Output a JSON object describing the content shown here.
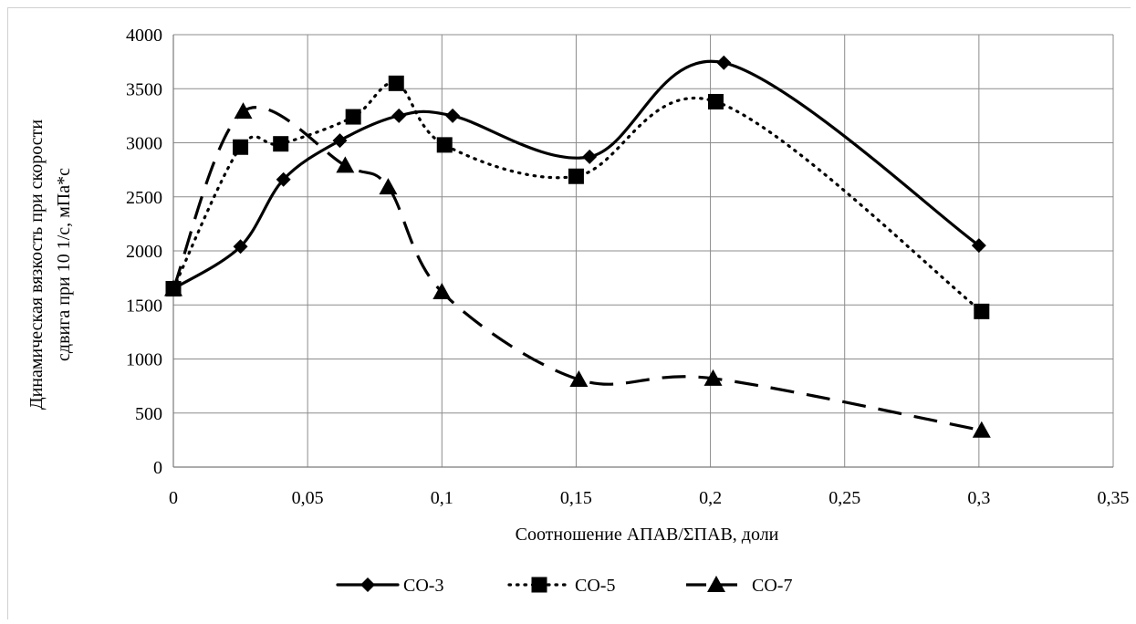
{
  "chart_data": {
    "type": "line",
    "title": "",
    "xlabel": "Соотношение АПАВ/ΣПАВ, доли",
    "ylabel_lines": [
      "Динамическая вязкость при скорости",
      "сдвига при 10 1/с, мПа*с"
    ],
    "xlim": [
      0,
      0.35
    ],
    "ylim": [
      0,
      4000
    ],
    "x_ticks": [
      "0",
      "0,05",
      "0,1",
      "0,15",
      "0,2",
      "0,25",
      "0,3",
      "0,35"
    ],
    "y_ticks": [
      "0",
      "500",
      "1000",
      "1500",
      "2000",
      "2500",
      "3000",
      "3500",
      "4000"
    ],
    "grid": true,
    "legend_position": "bottom",
    "series": [
      {
        "name": "СО-3",
        "marker": "diamond",
        "line_style": "solid",
        "color": "#000000",
        "x": [
          0,
          0.025,
          0.041,
          0.062,
          0.084,
          0.104,
          0.155,
          0.205,
          0.3
        ],
        "y": [
          1650,
          2040,
          2660,
          3020,
          3250,
          3250,
          2870,
          3740,
          2050
        ]
      },
      {
        "name": "СО-5",
        "marker": "square",
        "line_style": "dotted",
        "color": "#000000",
        "x": [
          0,
          0.025,
          0.04,
          0.067,
          0.083,
          0.101,
          0.15,
          0.202,
          0.301
        ],
        "y": [
          1650,
          2960,
          2990,
          3240,
          3550,
          2980,
          2690,
          3380,
          1440
        ]
      },
      {
        "name": "СО-7",
        "marker": "triangle",
        "line_style": "dashed",
        "color": "#000000",
        "x": [
          0,
          0.026,
          0.064,
          0.08,
          0.1,
          0.151,
          0.201,
          0.301
        ],
        "y": [
          1650,
          3290,
          2790,
          2590,
          1620,
          810,
          820,
          340
        ]
      }
    ]
  }
}
